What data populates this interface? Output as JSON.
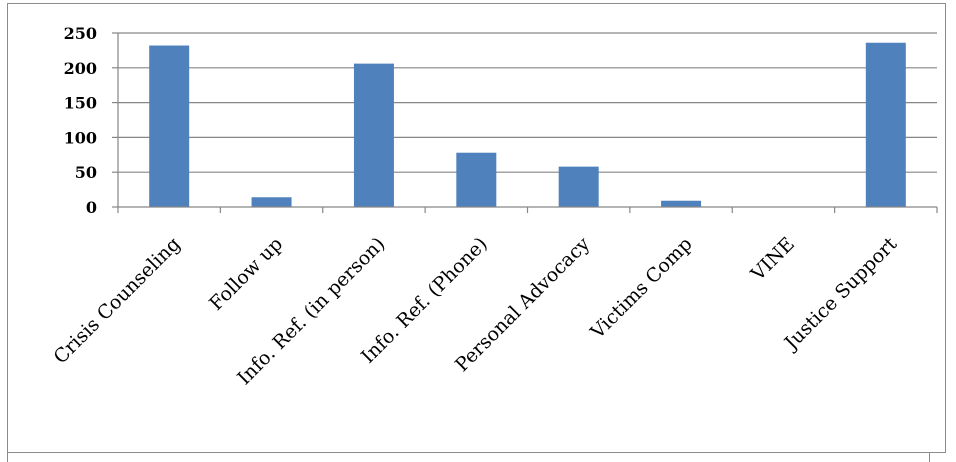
{
  "chart_data": {
    "type": "bar",
    "categories": [
      "Crisis Counseling",
      "Follow up",
      "Info. Ref. (in person)",
      "Info. Ref. (Phone)",
      "Personal Advocacy",
      "Victims Comp",
      "VINE",
      "Justice Support"
    ],
    "values": [
      232,
      14,
      206,
      78,
      58,
      9,
      0,
      236
    ],
    "ylim": [
      0,
      250
    ],
    "yticks": [
      0,
      50,
      100,
      150,
      200,
      250
    ],
    "grid": true,
    "legend": "none",
    "bar_color": "#4f81bd"
  }
}
